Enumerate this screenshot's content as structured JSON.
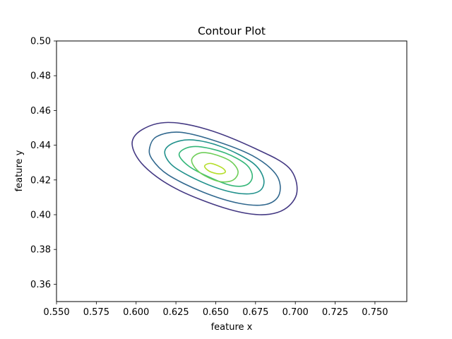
{
  "chart_data": {
    "type": "contour",
    "title": "Contour Plot",
    "xlabel": "feature x",
    "ylabel": "feature y",
    "xlim": [
      0.55,
      0.77
    ],
    "ylim": [
      0.35,
      0.5
    ],
    "x_ticks": [
      "0.550",
      "0.575",
      "0.600",
      "0.625",
      "0.650",
      "0.675",
      "0.700",
      "0.725",
      "0.750"
    ],
    "x_tick_values": [
      0.55,
      0.575,
      0.6,
      0.625,
      0.65,
      0.675,
      0.7,
      0.725,
      0.75
    ],
    "y_ticks": [
      "0.36",
      "0.38",
      "0.40",
      "0.42",
      "0.44",
      "0.46",
      "0.48",
      "0.50"
    ],
    "y_tick_values": [
      0.36,
      0.38,
      0.4,
      0.42,
      0.44,
      0.46,
      0.48,
      0.5
    ],
    "grid": false,
    "legend": "none",
    "contours": [
      {
        "level": 1,
        "color": "#443983",
        "points": [
          [
            0.5975,
            0.4405
          ],
          [
            0.6035,
            0.4488
          ],
          [
            0.62,
            0.4531
          ],
          [
            0.645,
            0.449
          ],
          [
            0.675,
            0.438
          ],
          [
            0.696,
            0.427
          ],
          [
            0.701,
            0.413
          ],
          [
            0.693,
            0.403
          ],
          [
            0.6775,
            0.4
          ],
          [
            0.655,
            0.404
          ],
          [
            0.625,
            0.415
          ],
          [
            0.605,
            0.428
          ]
        ]
      },
      {
        "level": 2,
        "color": "#31688e",
        "points": [
          [
            0.6085,
            0.4385
          ],
          [
            0.613,
            0.445
          ],
          [
            0.627,
            0.4475
          ],
          [
            0.648,
            0.443
          ],
          [
            0.673,
            0.434
          ],
          [
            0.688,
            0.423
          ],
          [
            0.69,
            0.412
          ],
          [
            0.682,
            0.406
          ],
          [
            0.665,
            0.4065
          ],
          [
            0.642,
            0.413
          ],
          [
            0.62,
            0.423
          ],
          [
            0.61,
            0.432
          ]
        ]
      },
      {
        "level": 3,
        "color": "#21918c",
        "points": [
          [
            0.618,
            0.4365
          ],
          [
            0.624,
            0.4415
          ],
          [
            0.636,
            0.443
          ],
          [
            0.654,
            0.439
          ],
          [
            0.673,
            0.43
          ],
          [
            0.68,
            0.421
          ],
          [
            0.678,
            0.414
          ],
          [
            0.668,
            0.412
          ],
          [
            0.652,
            0.415
          ],
          [
            0.634,
            0.422
          ],
          [
            0.622,
            0.429
          ]
        ]
      },
      {
        "level": 4,
        "color": "#35b779",
        "points": [
          [
            0.627,
            0.4345
          ],
          [
            0.632,
            0.4385
          ],
          [
            0.641,
            0.439
          ],
          [
            0.656,
            0.4355
          ],
          [
            0.669,
            0.429
          ],
          [
            0.673,
            0.422
          ],
          [
            0.669,
            0.417
          ],
          [
            0.659,
            0.417
          ],
          [
            0.645,
            0.422
          ],
          [
            0.633,
            0.428
          ]
        ]
      },
      {
        "level": 5,
        "color": "#6ece58",
        "points": [
          [
            0.635,
            0.432
          ],
          [
            0.64,
            0.4355
          ],
          [
            0.648,
            0.435
          ],
          [
            0.659,
            0.431
          ],
          [
            0.664,
            0.425
          ],
          [
            0.661,
            0.42
          ],
          [
            0.653,
            0.419
          ],
          [
            0.643,
            0.4225
          ],
          [
            0.637,
            0.427
          ]
        ]
      },
      {
        "level": 6,
        "color": "#b5de2b",
        "points": [
          [
            0.643,
            0.428
          ],
          [
            0.647,
            0.4295
          ],
          [
            0.654,
            0.427
          ],
          [
            0.656,
            0.4245
          ],
          [
            0.652,
            0.4235
          ],
          [
            0.646,
            0.425
          ]
        ]
      }
    ]
  }
}
